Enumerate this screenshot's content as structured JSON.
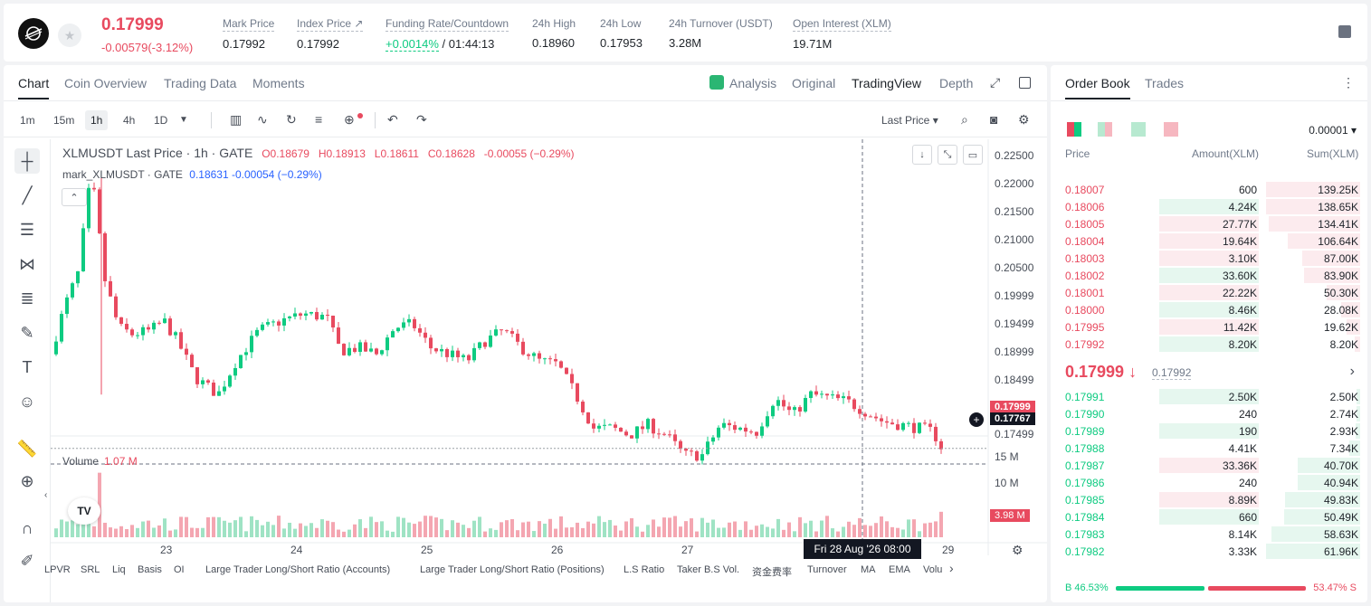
{
  "header": {
    "last_price": "0.17999",
    "change": "-0.00579(-3.12%)",
    "stats": [
      {
        "label": "Mark Price",
        "value": "0.17992"
      },
      {
        "label": "Index Price ↗",
        "value": "0.17992"
      },
      {
        "label": "Funding Rate/Countdown",
        "rate": "+0.0014%",
        "countdown": "/ 01:44:13"
      },
      {
        "label": "24h High",
        "value": "0.18960"
      },
      {
        "label": "24h Low",
        "value": "0.17953"
      },
      {
        "label": "24h Turnover (USDT)",
        "value": "3.28M"
      },
      {
        "label": "Open Interest (XLM)",
        "value": "19.71M"
      }
    ],
    "icons": {
      "logo": "stellar-logo",
      "favorite": "star-icon",
      "book": "book-icon"
    }
  },
  "chart_tabs": [
    "Chart",
    "Coin Overview",
    "Trading Data",
    "Moments"
  ],
  "view_tabs": [
    "Analysis",
    "Original",
    "TradingView",
    "Depth"
  ],
  "timeframes": [
    "1m",
    "15m",
    "1h",
    "4h",
    "1D"
  ],
  "price_type": "Last Price",
  "legend": {
    "title": "XLMUSDT Last Price · 1h · GATE",
    "o": "O0.18679",
    "h": "H0.18913",
    "l": "L0.18611",
    "c": "C0.18628",
    "chg": "-0.00055 (−0.29%)",
    "mark_title": "mark_XLMUSDT · GATE",
    "mark_vals": "0.18631  -0.00054 (−0.29%)"
  },
  "price_axis": [
    "0.22500",
    "0.22000",
    "0.21500",
    "0.21000",
    "0.20500",
    "0.19999",
    "0.19499",
    "0.18999",
    "0.18499",
    "0.17499"
  ],
  "last_price_tag": "0.17999",
  "cursor_price_tag": "0.17767",
  "volume": {
    "label": "Volume",
    "value": "1.07 M",
    "axis": [
      "15 M",
      "10 M"
    ],
    "tag": "3.98 M"
  },
  "time_axis": [
    "23",
    "24",
    "25",
    "26",
    "27",
    "29"
  ],
  "time_tag": "Fri 28 Aug '26   08:00",
  "indicators": [
    "LPVR",
    "SRL",
    "Liq",
    "Basis",
    "OI",
    "Large Trader Long/Short Ratio (Accounts)",
    "Large Trader Long/Short Ratio (Positions)",
    "L.S Ratio",
    "Taker B.S Vol.",
    "资金费率",
    "Turnover",
    "MA",
    "EMA",
    "Volu"
  ],
  "orderbook": {
    "tabs": [
      "Order Book",
      "Trades"
    ],
    "precision": "0.00001",
    "headers": [
      "Price",
      "Amount(XLM)",
      "Sum(XLM)"
    ],
    "asks": [
      {
        "price": "0.18007",
        "amount": "600",
        "sum": "139.25K",
        "amt_side": "none",
        "amt_frac": 0,
        "sum_frac": 1.0
      },
      {
        "price": "0.18006",
        "amount": "4.24K",
        "sum": "138.65K",
        "amt_side": "green",
        "amt_frac": 1.0,
        "sum_frac": 1.0
      },
      {
        "price": "0.18005",
        "amount": "27.77K",
        "sum": "134.41K",
        "amt_side": "red",
        "amt_frac": 1.0,
        "sum_frac": 0.97
      },
      {
        "price": "0.18004",
        "amount": "19.64K",
        "sum": "106.64K",
        "amt_side": "red",
        "amt_frac": 1.0,
        "sum_frac": 0.77
      },
      {
        "price": "0.18003",
        "amount": "3.10K",
        "sum": "87.00K",
        "amt_side": "red",
        "amt_frac": 1.0,
        "sum_frac": 0.62
      },
      {
        "price": "0.18002",
        "amount": "33.60K",
        "sum": "83.90K",
        "amt_side": "green",
        "amt_frac": 1.0,
        "sum_frac": 0.6
      },
      {
        "price": "0.18001",
        "amount": "22.22K",
        "sum": "50.30K",
        "amt_side": "red",
        "amt_frac": 1.0,
        "sum_frac": 0.36
      },
      {
        "price": "0.18000",
        "amount": "8.46K",
        "sum": "28.08K",
        "amt_side": "green",
        "amt_frac": 1.0,
        "sum_frac": 0.2
      },
      {
        "price": "0.17995",
        "amount": "11.42K",
        "sum": "19.62K",
        "amt_side": "red",
        "amt_frac": 1.0,
        "sum_frac": 0.14
      },
      {
        "price": "0.17992",
        "amount": "8.20K",
        "sum": "8.20K",
        "amt_side": "green",
        "amt_frac": 1.0,
        "sum_frac": 0.06
      }
    ],
    "mid_price": "0.17999 ↓",
    "mid_mark": "0.17992",
    "bids": [
      {
        "price": "0.17991",
        "amount": "2.50K",
        "sum": "2.50K",
        "amt_side": "green",
        "amt_frac": 1.0,
        "sum_frac": 0.04
      },
      {
        "price": "0.17990",
        "amount": "240",
        "sum": "2.74K",
        "amt_side": "none",
        "amt_frac": 0,
        "sum_frac": 0.04
      },
      {
        "price": "0.17989",
        "amount": "190",
        "sum": "2.93K",
        "amt_side": "green",
        "amt_frac": 1.0,
        "sum_frac": 0.05
      },
      {
        "price": "0.17988",
        "amount": "4.41K",
        "sum": "7.34K",
        "amt_side": "none",
        "amt_frac": 0,
        "sum_frac": 0.12
      },
      {
        "price": "0.17987",
        "amount": "33.36K",
        "sum": "40.70K",
        "amt_side": "red",
        "amt_frac": 1.0,
        "sum_frac": 0.66
      },
      {
        "price": "0.17986",
        "amount": "240",
        "sum": "40.94K",
        "amt_side": "none",
        "amt_frac": 0,
        "sum_frac": 0.66
      },
      {
        "price": "0.17985",
        "amount": "8.89K",
        "sum": "49.83K",
        "amt_side": "red",
        "amt_frac": 1.0,
        "sum_frac": 0.8
      },
      {
        "price": "0.17984",
        "amount": "660",
        "sum": "50.49K",
        "amt_side": "green",
        "amt_frac": 1.0,
        "sum_frac": 0.81
      },
      {
        "price": "0.17983",
        "amount": "8.14K",
        "sum": "58.63K",
        "amt_side": "none",
        "amt_frac": 0,
        "sum_frac": 0.94
      },
      {
        "price": "0.17982",
        "amount": "3.33K",
        "sum": "61.96K",
        "amt_side": "none",
        "amt_frac": 0,
        "sum_frac": 1.0
      }
    ],
    "buy_ratio": "B 46.53%",
    "sell_ratio": "53.47% S",
    "buy_frac": 0.4653
  },
  "colors": {
    "up": "#0ecb81",
    "down": "#e84a5f",
    "text": "#1e2329",
    "muted": "#707a8a"
  }
}
